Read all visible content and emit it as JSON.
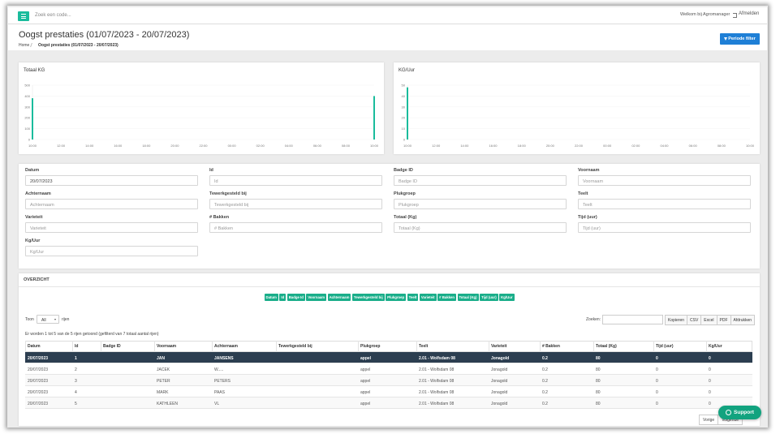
{
  "topbar": {
    "search_placeholder": "Zoek een code...",
    "welcome": "Welkom bij Agromanager",
    "logout": "Afmelden"
  },
  "header": {
    "title": "Oogst prestaties (01/07/2023 - 20/07/2023)",
    "breadcrumb": [
      "Home",
      "Oogst prestaties (01/07/2023 - 20/07/2023)"
    ],
    "filter_button": "Periode filter"
  },
  "chart_data": [
    {
      "type": "bar",
      "title": "Totaal KG",
      "color": "#1abc9c",
      "grid": true,
      "categories": [
        "10:00",
        "12:00",
        "14:00",
        "16:00",
        "18:00",
        "20:00",
        "22:00",
        "00:00",
        "02:00",
        "04:00",
        "06:00",
        "08:00",
        "10:00"
      ],
      "values": [
        380,
        null,
        null,
        null,
        null,
        null,
        null,
        null,
        null,
        null,
        null,
        null,
        400
      ],
      "ylim": [
        0,
        500
      ],
      "yticks": [
        0,
        100,
        200,
        300,
        400,
        500
      ]
    },
    {
      "type": "bar",
      "title": "KG/Uur",
      "color": "#1abc9c",
      "grid": true,
      "categories": [
        "10:00",
        "12:00",
        "14:00",
        "16:00",
        "18:00",
        "20:00",
        "22:00",
        "00:00",
        "02:00",
        "04:00",
        "06:00",
        "08:00",
        "10:00"
      ],
      "values": [
        48,
        null,
        null,
        null,
        null,
        null,
        null,
        null,
        null,
        null,
        null,
        null,
        null
      ],
      "ylim": [
        0,
        50
      ],
      "yticks": [
        0,
        10,
        20,
        30,
        40,
        50
      ]
    }
  ],
  "filters": [
    {
      "label": "Datum",
      "value": "20/07/2023"
    },
    {
      "label": "Id",
      "placeholder": "Id"
    },
    {
      "label": "Badge ID",
      "placeholder": "Badge ID"
    },
    {
      "label": "Voornaam",
      "placeholder": "Voornaam"
    },
    {
      "label": "Achternaam",
      "placeholder": "Achternaam"
    },
    {
      "label": "Tewerkgesteld bij",
      "placeholder": "Tewerkgesteld bij"
    },
    {
      "label": "Plukgroep",
      "placeholder": "Plukgroep"
    },
    {
      "label": "Teelt",
      "placeholder": "Teelt"
    },
    {
      "label": "Varieteit",
      "placeholder": "Varieteit"
    },
    {
      "label": "# Bakken",
      "placeholder": "# Bakken"
    },
    {
      "label": "Totaal (Kg)",
      "placeholder": "Totaal (Kg)"
    },
    {
      "label": "Tijd (uur)",
      "placeholder": "Tijd (uur)"
    },
    {
      "label": "Kg/Uur",
      "placeholder": "Kg/Uur"
    }
  ],
  "overview": {
    "title": "OVERZICHT",
    "column_buttons": [
      "Datum",
      "Id",
      "Badge Id",
      "Voornaam",
      "Achternaam",
      "Tewerkgesteld bij",
      "Plukgroep",
      "Teelt",
      "Varieteit",
      "# Bakken",
      "Totaal (Kg)",
      "Tijd (uur)",
      "Kg/Uur"
    ],
    "show_label": "Toon",
    "show_value": "All",
    "show_suffix": "rijen",
    "search_label": "Zoeken:",
    "export_buttons": [
      "Kopieren",
      "CSV",
      "Excel",
      "PDF",
      "Afdrukken"
    ],
    "info": "Er worden 1 tot 5 van de 5 rijen getoond (gefilterd van 7 totaal aantal rijen)",
    "columns": [
      "Datum",
      "Id",
      "Badge ID",
      "Voornaam",
      "Achternaam",
      "Tewerkgesteld bij",
      "Plukgroep",
      "Teelt",
      "Varieteit",
      "# Bakken",
      "Totaal (Kg)",
      "Tijd (uur)",
      "Kg/Uur"
    ],
    "rows": [
      [
        "20/07/2023",
        "1",
        null,
        "JAN",
        "JANSENS",
        null,
        "appel",
        "2.01 - Wolfsdam 08",
        "Jonagold",
        "0.2",
        "80",
        "0",
        "0"
      ],
      [
        "20/07/2023",
        "2",
        null,
        "JACEK",
        "W.....",
        null,
        "appel",
        "2.01 - Wolfsdam 08",
        "Jonagold",
        "0.2",
        "80",
        "0",
        "0"
      ],
      [
        "20/07/2023",
        "3",
        null,
        "PETER",
        "PETERS",
        null,
        "appel",
        "2.01 - Wolfsdam 08",
        "Jonagold",
        "0.2",
        "80",
        "0",
        "0"
      ],
      [
        "20/07/2023",
        "4",
        null,
        "MARK",
        "PAAS",
        null,
        "appel",
        "2.01 - Wolfsdam 08",
        "Jonagold",
        "0.2",
        "80",
        "0",
        "0"
      ],
      [
        "20/07/2023",
        "5",
        null,
        "KATHLEEN",
        "VL",
        null,
        "appel",
        "2.01 - Wolfsdam 08",
        "Jonagold",
        "0.2",
        "80",
        "0",
        "0"
      ]
    ],
    "selected_row": 0,
    "pagination": [
      "Vorige",
      "Volgende"
    ]
  },
  "support": "Support"
}
